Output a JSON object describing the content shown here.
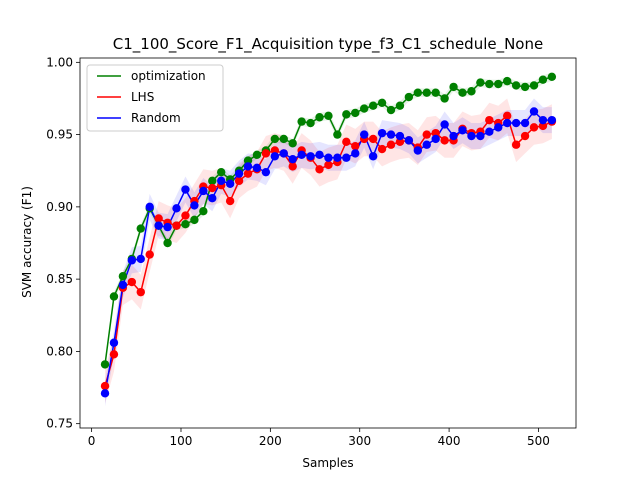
{
  "chart_data": {
    "type": "line",
    "title": "C1_100_Score_F1_Acquisition type_f3_C1_schedule_None",
    "xlabel": "Samples",
    "ylabel": "SVM accuracy (F1)",
    "xlim": [
      -13,
      542
    ],
    "ylim": [
      0.747,
      1.003
    ],
    "xticks": [
      0,
      100,
      200,
      300,
      400,
      500
    ],
    "xtick_labels": [
      "0",
      "100",
      "200",
      "300",
      "400",
      "500"
    ],
    "yticks": [
      0.75,
      0.8,
      0.85,
      0.9,
      0.95,
      1.0
    ],
    "ytick_labels": [
      "0.75",
      "0.80",
      "0.85",
      "0.90",
      "0.95",
      "1.00"
    ],
    "grid": false,
    "legend_position": "top-left",
    "x": [
      15,
      25,
      35,
      45,
      55,
      65,
      75,
      85,
      95,
      105,
      115,
      125,
      135,
      145,
      155,
      165,
      175,
      185,
      195,
      205,
      215,
      225,
      235,
      245,
      255,
      265,
      275,
      285,
      295,
      305,
      315,
      325,
      335,
      345,
      355,
      365,
      375,
      385,
      395,
      405,
      415,
      425,
      435,
      445,
      455,
      465,
      475,
      485,
      495,
      505,
      515
    ],
    "series": [
      {
        "name": "optimization",
        "color": "#008000",
        "values": [
          0.791,
          0.838,
          0.852,
          0.864,
          0.885,
          0.899,
          0.887,
          0.875,
          0.887,
          0.888,
          0.891,
          0.897,
          0.918,
          0.924,
          0.919,
          0.925,
          0.932,
          0.936,
          0.939,
          0.947,
          0.947,
          0.944,
          0.959,
          0.958,
          0.962,
          0.963,
          0.95,
          0.964,
          0.965,
          0.968,
          0.97,
          0.972,
          0.967,
          0.97,
          0.976,
          0.979,
          0.979,
          0.979,
          0.975,
          0.983,
          0.979,
          0.98,
          0.986,
          0.985,
          0.985,
          0.987,
          0.984,
          0.983,
          0.984,
          0.988,
          0.99
        ],
        "band": 0.003
      },
      {
        "name": "LHS",
        "color": "#ff0000",
        "values": [
          0.776,
          0.798,
          0.844,
          0.848,
          0.841,
          0.867,
          0.892,
          0.889,
          0.887,
          0.894,
          0.904,
          0.914,
          0.913,
          0.915,
          0.904,
          0.918,
          0.923,
          0.926,
          0.937,
          0.939,
          0.937,
          0.928,
          0.939,
          0.934,
          0.926,
          0.929,
          0.931,
          0.945,
          0.942,
          0.947,
          0.947,
          0.94,
          0.943,
          0.945,
          0.946,
          0.941,
          0.95,
          0.951,
          0.946,
          0.946,
          0.954,
          0.951,
          0.952,
          0.96,
          0.958,
          0.963,
          0.943,
          0.949,
          0.955,
          0.956,
          0.959
        ],
        "band": 0.012
      },
      {
        "name": "Random",
        "color": "#0000ff",
        "values": [
          0.771,
          0.806,
          0.846,
          0.863,
          0.864,
          0.9,
          0.887,
          0.886,
          0.899,
          0.912,
          0.901,
          0.911,
          0.906,
          0.918,
          0.916,
          0.923,
          0.928,
          0.927,
          0.924,
          0.935,
          0.937,
          0.933,
          0.936,
          0.935,
          0.936,
          0.934,
          0.934,
          0.934,
          0.937,
          0.95,
          0.935,
          0.951,
          0.95,
          0.949,
          0.946,
          0.939,
          0.943,
          0.947,
          0.957,
          0.949,
          0.953,
          0.949,
          0.949,
          0.952,
          0.955,
          0.958,
          0.958,
          0.958,
          0.966,
          0.96,
          0.96
        ],
        "band": 0.009
      }
    ]
  }
}
